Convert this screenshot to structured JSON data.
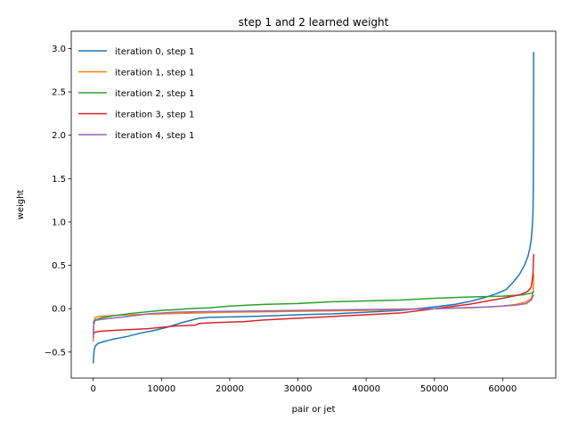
{
  "chart_data": {
    "type": "line",
    "title": "step 1 and 2 learned weight",
    "xlabel": "pair or jet",
    "ylabel": "weight",
    "xlim": [
      -3228,
      67788
    ],
    "ylim": [
      -0.8,
      3.2
    ],
    "xticks": [
      0,
      10000,
      20000,
      30000,
      40000,
      50000,
      60000
    ],
    "yticks": [
      -0.5,
      0.0,
      0.5,
      1.0,
      1.5,
      2.0,
      2.5,
      3.0
    ],
    "xtick_labels": [
      "0",
      "10000",
      "20000",
      "30000",
      "40000",
      "50000",
      "60000"
    ],
    "ytick_labels": [
      "−0.5",
      "0.0",
      "0.5",
      "1.0",
      "1.5",
      "2.0",
      "2.5",
      "3.0"
    ],
    "grid": false,
    "legend_position": "top-left",
    "series": [
      {
        "name": "iteration 0, step 1",
        "color": "#1f77b4",
        "x": [
          0,
          50,
          150,
          300,
          700,
          1500,
          3000,
          5000,
          7000,
          9000,
          11000,
          13000,
          14500,
          15500,
          17000,
          20000,
          25000,
          30000,
          35000,
          40000,
          45000,
          50000,
          53000,
          55000,
          57000,
          59000,
          60500,
          61500,
          62500,
          63200,
          63700,
          64000,
          64200,
          64350,
          64450,
          64500,
          64530,
          64550
        ],
        "y": [
          -0.63,
          -0.55,
          -0.47,
          -0.43,
          -0.4,
          -0.38,
          -0.35,
          -0.32,
          -0.28,
          -0.25,
          -0.21,
          -0.16,
          -0.13,
          -0.11,
          -0.1,
          -0.095,
          -0.085,
          -0.07,
          -0.06,
          -0.04,
          -0.02,
          0.02,
          0.05,
          0.08,
          0.12,
          0.17,
          0.22,
          0.3,
          0.4,
          0.5,
          0.6,
          0.7,
          0.8,
          0.95,
          1.1,
          1.4,
          2.0,
          2.96
        ]
      },
      {
        "name": "iteration 1, step 1",
        "color": "#ff7f0e",
        "x": [
          0,
          100,
          300,
          800,
          1500,
          5000,
          10000,
          15000,
          20000,
          30000,
          40000,
          50000,
          55000,
          60000,
          62000,
          63500,
          64200,
          64500,
          64550
        ],
        "y": [
          -0.38,
          -0.15,
          -0.1,
          -0.09,
          -0.085,
          -0.07,
          -0.06,
          -0.05,
          -0.04,
          -0.03,
          -0.02,
          0.0,
          0.01,
          0.03,
          0.05,
          0.08,
          0.12,
          0.2,
          0.4
        ]
      },
      {
        "name": "iteration 2, step 1",
        "color": "#2ca02c",
        "x": [
          0,
          100,
          300,
          1000,
          3000,
          6000,
          10000,
          12500,
          14000,
          17000,
          20000,
          25000,
          30000,
          35000,
          40000,
          45000,
          50000,
          55000,
          60000,
          63000,
          64300,
          64550
        ],
        "y": [
          -0.17,
          -0.14,
          -0.13,
          -0.11,
          -0.08,
          -0.05,
          -0.02,
          -0.01,
          0.0,
          0.01,
          0.03,
          0.05,
          0.06,
          0.08,
          0.09,
          0.1,
          0.12,
          0.135,
          0.145,
          0.16,
          0.18,
          0.2
        ]
      },
      {
        "name": "iteration 3, step 1",
        "color": "#d62728",
        "x": [
          0,
          100,
          300,
          1000,
          3000,
          8000,
          12000,
          15000,
          15500,
          18000,
          22000,
          25000,
          30000,
          35000,
          40000,
          45000,
          50000,
          55000,
          60000,
          62500,
          63700,
          64200,
          64450,
          64550
        ],
        "y": [
          -0.3,
          -0.28,
          -0.27,
          -0.26,
          -0.25,
          -0.23,
          -0.2,
          -0.19,
          -0.17,
          -0.16,
          -0.15,
          -0.13,
          -0.11,
          -0.09,
          -0.07,
          -0.05,
          0.0,
          0.05,
          0.12,
          0.16,
          0.2,
          0.25,
          0.4,
          0.63
        ]
      },
      {
        "name": "iteration 4, step 1",
        "color": "#9467bd",
        "x": [
          0,
          50,
          200,
          600,
          1500,
          4000,
          8000,
          12000,
          15000,
          20000,
          30000,
          40000,
          50000,
          58000,
          62000,
          63500,
          64200,
          64550
        ],
        "y": [
          -0.34,
          -0.2,
          -0.14,
          -0.13,
          -0.12,
          -0.1,
          -0.06,
          -0.04,
          -0.035,
          -0.03,
          -0.02,
          -0.01,
          0.0,
          0.02,
          0.04,
          0.06,
          0.1,
          0.16
        ]
      }
    ]
  }
}
